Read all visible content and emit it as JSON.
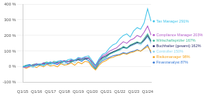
{
  "chart_data": {
    "type": "line",
    "categories": [
      "Q1/15",
      null,
      null,
      null,
      "Q1/16",
      null,
      null,
      null,
      "Q1/17",
      null,
      null,
      null,
      "Q1/18",
      null,
      null,
      null,
      "Q1/19",
      null,
      null,
      null,
      "Q1/20",
      null,
      null,
      null,
      "Q1/21",
      null,
      null,
      null,
      "Q1/22",
      null,
      null,
      null,
      "Q1/23",
      null,
      null,
      null,
      "Q1/24",
      null
    ],
    "series": [
      {
        "name": "Tax Manager",
        "end_label": "Tax Manager 291%",
        "color": "#3ec3ea",
        "values": [
          0,
          5,
          10,
          3,
          15,
          20,
          10,
          25,
          30,
          20,
          35,
          40,
          30,
          45,
          50,
          40,
          60,
          55,
          65,
          70,
          40,
          10,
          50,
          80,
          90,
          120,
          140,
          150,
          180,
          200,
          210,
          190,
          230,
          250,
          240,
          280,
          370,
          291
        ]
      },
      {
        "name": "Compliance Manager",
        "end_label": "Compliance Manager 203%",
        "color": "#b25cc9",
        "values": [
          0,
          -5,
          5,
          10,
          20,
          15,
          25,
          20,
          30,
          25,
          20,
          35,
          40,
          30,
          45,
          40,
          55,
          50,
          60,
          55,
          30,
          0,
          40,
          70,
          80,
          100,
          110,
          120,
          140,
          160,
          150,
          170,
          180,
          200,
          190,
          220,
          260,
          203
        ]
      },
      {
        "name": "Wirtschaftsprüfer",
        "end_label": "Wirtschaftsprüfer 167%",
        "color": "#3cb89a",
        "values": [
          0,
          10,
          5,
          15,
          20,
          10,
          25,
          30,
          20,
          35,
          30,
          25,
          40,
          35,
          30,
          45,
          50,
          45,
          55,
          60,
          20,
          -10,
          30,
          50,
          60,
          80,
          90,
          100,
          110,
          130,
          120,
          140,
          150,
          160,
          150,
          180,
          210,
          167
        ]
      },
      {
        "name": "Buchhalter (gesamt)",
        "end_label": "Buchhalter (gesamt) 162%",
        "color": "#2b2f6e",
        "values": [
          0,
          5,
          8,
          10,
          12,
          15,
          18,
          20,
          22,
          25,
          28,
          30,
          32,
          35,
          38,
          40,
          45,
          48,
          50,
          55,
          30,
          10,
          40,
          60,
          70,
          85,
          95,
          105,
          115,
          125,
          120,
          135,
          145,
          155,
          150,
          170,
          200,
          162
        ]
      },
      {
        "name": "Controller",
        "end_label": "Controller 150%",
        "color": "#8fd6ef",
        "values": [
          0,
          0,
          5,
          -5,
          10,
          15,
          5,
          20,
          10,
          25,
          20,
          30,
          15,
          35,
          40,
          25,
          50,
          40,
          55,
          45,
          15,
          -5,
          35,
          55,
          65,
          80,
          95,
          100,
          105,
          120,
          115,
          130,
          140,
          150,
          140,
          165,
          190,
          150
        ]
      },
      {
        "name": "Risikomanager",
        "end_label": "Risikomanager 98%",
        "color": "#f5a623",
        "values": [
          0,
          -10,
          0,
          5,
          -5,
          10,
          0,
          15,
          5,
          10,
          0,
          20,
          10,
          15,
          25,
          10,
          30,
          20,
          35,
          30,
          0,
          -20,
          10,
          30,
          40,
          55,
          60,
          70,
          75,
          85,
          80,
          90,
          95,
          105,
          100,
          115,
          130,
          98
        ]
      },
      {
        "name": "Finanzanalyst",
        "end_label": "Finanzanalyst 87%",
        "color": "#3a7bd5",
        "values": [
          0,
          10,
          15,
          5,
          20,
          10,
          25,
          15,
          30,
          20,
          15,
          25,
          35,
          20,
          30,
          40,
          45,
          35,
          50,
          40,
          10,
          -15,
          20,
          40,
          50,
          60,
          70,
          75,
          80,
          90,
          85,
          95,
          100,
          110,
          100,
          120,
          140,
          87
        ]
      }
    ],
    "ylim": [
      -100,
      400
    ],
    "yticks": [
      {
        "value": -100,
        "label": "-100 %"
      },
      {
        "value": 0,
        "label": "0 %"
      },
      {
        "value": 100,
        "label": "100 %"
      },
      {
        "value": 200,
        "label": "200 %"
      },
      {
        "value": 300,
        "label": "300 %"
      },
      {
        "value": 400,
        "label": "400 %"
      }
    ],
    "grid": true
  }
}
